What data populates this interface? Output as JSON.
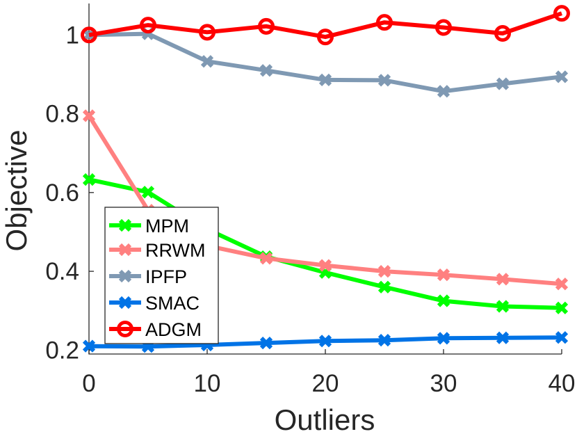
{
  "chart_data": {
    "type": "line",
    "title": "",
    "xlabel": "Outliers",
    "ylabel": "Objective",
    "x": [
      0,
      5,
      10,
      15,
      20,
      25,
      30,
      35,
      40
    ],
    "xlim": [
      0,
      40
    ],
    "ylim": [
      0.19,
      1.08
    ],
    "xticks": [
      0,
      10,
      20,
      30,
      40
    ],
    "yticks": [
      0.2,
      0.4,
      0.6,
      0.8,
      1
    ],
    "xtick_labels": [
      "0",
      "10",
      "20",
      "30",
      "40"
    ],
    "ytick_labels": [
      "0.2",
      "0.4",
      "0.6",
      "0.8",
      "1"
    ],
    "grid": false,
    "legend_position": "lower-left",
    "series": [
      {
        "name": "MPM",
        "color": "#00ff00",
        "marker": "x",
        "values": [
          0.633,
          0.601,
          0.507,
          0.437,
          0.397,
          0.36,
          0.325,
          0.311,
          0.307
        ]
      },
      {
        "name": "RRWM",
        "color": "#ff8080",
        "marker": "x",
        "values": [
          0.795,
          0.555,
          0.465,
          0.433,
          0.415,
          0.4,
          0.391,
          0.38,
          0.368
        ]
      },
      {
        "name": "IPFP",
        "color": "#7f99b3",
        "marker": "x",
        "values": [
          1.0,
          1.003,
          0.933,
          0.91,
          0.886,
          0.885,
          0.857,
          0.876,
          0.894
        ]
      },
      {
        "name": "SMAC",
        "color": "#0073e6",
        "marker": "x",
        "values": [
          0.21,
          0.209,
          0.213,
          0.218,
          0.223,
          0.225,
          0.23,
          0.231,
          0.232
        ]
      },
      {
        "name": "ADGM",
        "color": "#ff0000",
        "marker": "o",
        "values": [
          1.0,
          1.025,
          1.007,
          1.022,
          0.995,
          1.032,
          1.019,
          1.004,
          1.055
        ]
      }
    ]
  }
}
